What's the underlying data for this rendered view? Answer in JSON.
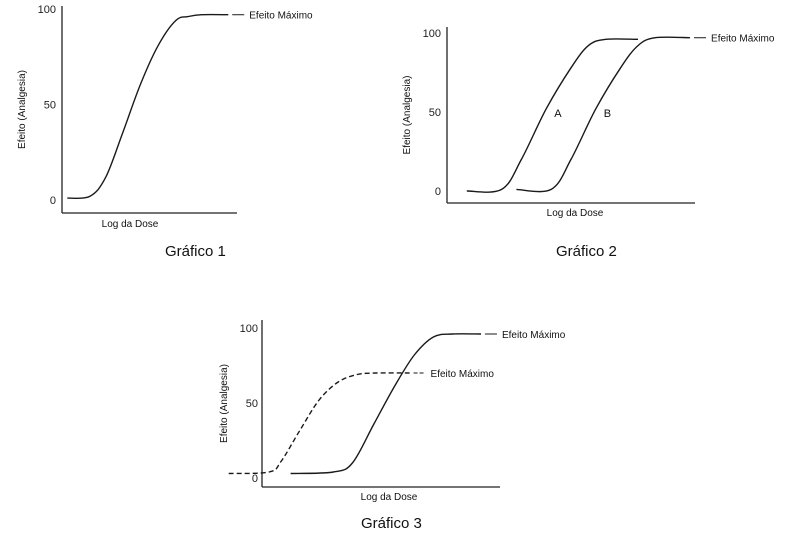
{
  "chart_data": [
    {
      "type": "line",
      "caption": "Gráfico 1",
      "xlabel": "Log da Dose",
      "ylabel": "Efeito (Analgesia)",
      "yticks": [
        "0",
        "50",
        "100"
      ],
      "ylim": [
        0,
        100
      ],
      "series": [
        {
          "label": "Efeito Máximo",
          "style": "solid",
          "x": [
            0.03,
            0.16,
            0.25,
            0.35,
            0.45,
            0.55,
            0.65,
            0.72,
            0.8,
            0.95
          ],
          "y": [
            1,
            2,
            12,
            36,
            61,
            81,
            94,
            96,
            97,
            97
          ]
        }
      ]
    },
    {
      "type": "line",
      "caption": "Gráfico 2",
      "xlabel": "Log da Dose",
      "ylabel": "Efeito (Analgesia)",
      "yticks": [
        "0",
        "50",
        "100"
      ],
      "ylim": [
        0,
        100
      ],
      "series": [
        {
          "letter": "A",
          "style": "solid",
          "x": [
            0.08,
            0.22,
            0.3,
            0.4,
            0.5,
            0.57,
            0.64,
            0.77
          ],
          "y": [
            0,
            1,
            20,
            52,
            78,
            92,
            96,
            96
          ]
        },
        {
          "letter": "B",
          "label": "Efeito Máximo",
          "style": "solid",
          "x": [
            0.28,
            0.42,
            0.5,
            0.6,
            0.7,
            0.77,
            0.84,
            0.98
          ],
          "y": [
            1,
            1,
            20,
            52,
            78,
            92,
            97,
            97
          ]
        }
      ]
    },
    {
      "type": "line",
      "caption": "Gráfico 3",
      "xlabel": "Log da Dose",
      "ylabel": "Efeito (Analgesia)",
      "yticks": [
        "0",
        "50",
        "100"
      ],
      "ylim": [
        0,
        100
      ],
      "series": [
        {
          "label": "Efeito Máximo",
          "style": "solid",
          "x": [
            0.12,
            0.3,
            0.38,
            0.47,
            0.56,
            0.64,
            0.72,
            0.8,
            0.92
          ],
          "y": [
            3,
            4,
            10,
            36,
            62,
            82,
            94,
            96,
            96
          ]
        },
        {
          "label": "Efeito Máximo",
          "style": "dashed",
          "x": [
            -0.14,
            0.03,
            0.08,
            0.16,
            0.24,
            0.32,
            0.4,
            0.48,
            0.62
          ],
          "y": [
            3,
            4,
            11,
            32,
            52,
            64,
            69,
            70,
            70
          ]
        }
      ]
    }
  ]
}
